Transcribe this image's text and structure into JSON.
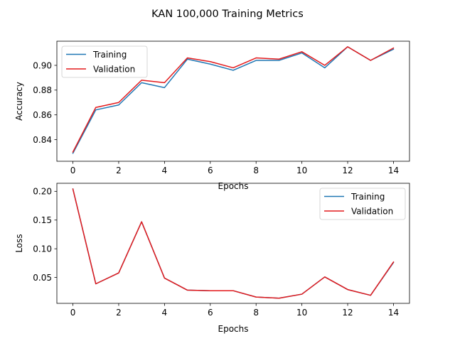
{
  "figure": {
    "suptitle": "KAN 100,000 Training Metrics"
  },
  "chart_data": [
    {
      "type": "line",
      "title": "",
      "xlabel": "Epochs",
      "ylabel": "Accuracy",
      "x": [
        0,
        1,
        2,
        3,
        4,
        5,
        6,
        7,
        8,
        9,
        10,
        11,
        12,
        13,
        14
      ],
      "xlim": [
        -0.7,
        14.7
      ],
      "ylim": [
        0.8225,
        0.9195
      ],
      "xticks": [
        0,
        2,
        4,
        6,
        8,
        10,
        12,
        14
      ],
      "yticks": [
        0.84,
        0.86,
        0.88,
        0.9
      ],
      "yticklabels": [
        "0.84",
        "0.86",
        "0.88",
        "0.90"
      ],
      "legend_position": "upper-left",
      "grid": false,
      "series": [
        {
          "name": "Training",
          "color": "#1f77b4",
          "values": [
            0.829,
            0.864,
            0.868,
            0.886,
            0.882,
            0.905,
            0.901,
            0.896,
            0.904,
            0.904,
            0.91,
            0.898,
            0.915,
            0.904,
            0.913
          ]
        },
        {
          "name": "Validation",
          "color": "#e31a1c",
          "values": [
            0.83,
            0.866,
            0.87,
            0.888,
            0.886,
            0.906,
            0.903,
            0.898,
            0.906,
            0.905,
            0.911,
            0.9,
            0.915,
            0.904,
            0.914
          ]
        }
      ]
    },
    {
      "type": "line",
      "title": "",
      "xlabel": "Epochs",
      "ylabel": "Loss",
      "x": [
        0,
        1,
        2,
        3,
        4,
        5,
        6,
        7,
        8,
        9,
        10,
        11,
        12,
        13,
        14
      ],
      "xlim": [
        -0.7,
        14.7
      ],
      "ylim": [
        0.005,
        0.214
      ],
      "xticks": [
        0,
        2,
        4,
        6,
        8,
        10,
        12,
        14
      ],
      "yticks": [
        0.05,
        0.1,
        0.15,
        0.2
      ],
      "yticklabels": [
        "0.05",
        "0.10",
        "0.15",
        "0.20"
      ],
      "legend_position": "upper-right",
      "grid": false,
      "series": [
        {
          "name": "Training",
          "color": "#1f77b4",
          "values": [
            0.204,
            0.039,
            0.058,
            0.147,
            0.049,
            0.028,
            0.027,
            0.027,
            0.016,
            0.014,
            0.021,
            0.051,
            0.029,
            0.019,
            0.076
          ]
        },
        {
          "name": "Validation",
          "color": "#e31a1c",
          "values": [
            0.204,
            0.039,
            0.058,
            0.147,
            0.049,
            0.028,
            0.027,
            0.027,
            0.016,
            0.014,
            0.021,
            0.051,
            0.029,
            0.019,
            0.077
          ]
        }
      ]
    }
  ]
}
